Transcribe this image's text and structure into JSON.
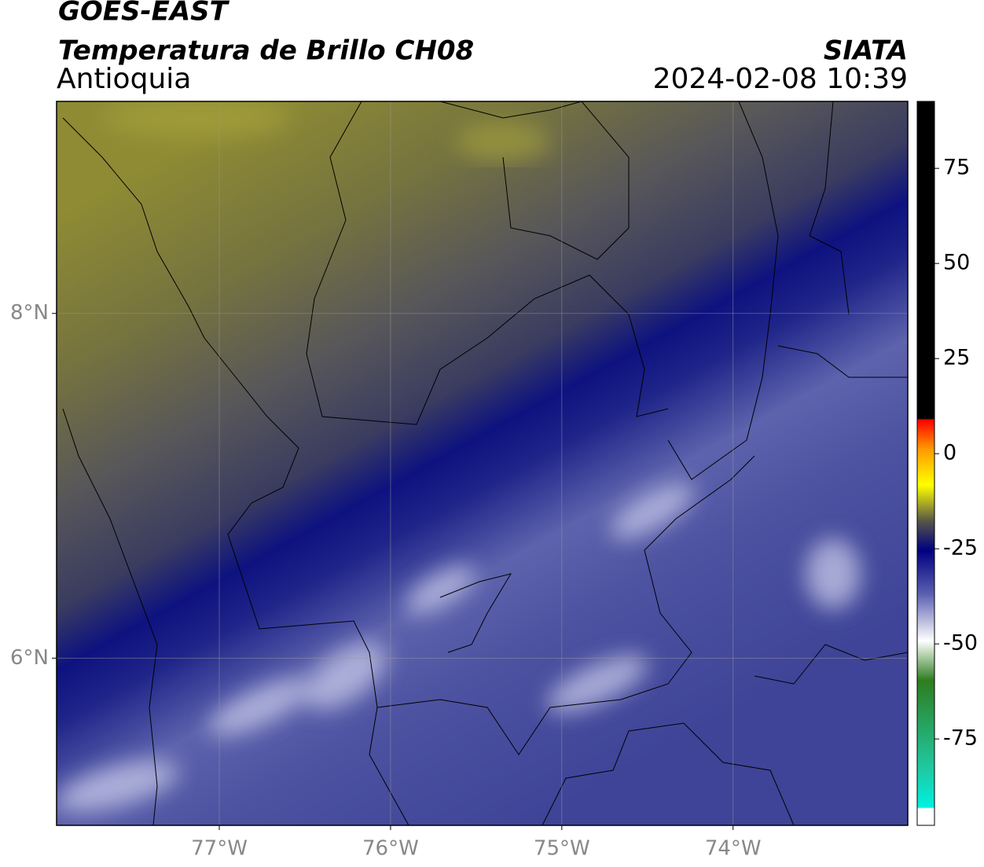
{
  "header": {
    "title": "GOES-EAST",
    "subtitle": "Temperatura de Brillo CH08",
    "region": "Antioquia",
    "source": "SIATA",
    "timestamp": "2024-02-08 10:39"
  },
  "map": {
    "xlim": [
      -77.95,
      -72.98
    ],
    "ylim": [
      5.03,
      9.23
    ],
    "xticks": [
      {
        "value": -77,
        "label": "77°W"
      },
      {
        "value": -76,
        "label": "76°W"
      },
      {
        "value": -75,
        "label": "75°W"
      },
      {
        "value": -74,
        "label": "74°W"
      }
    ],
    "yticks": [
      {
        "value": 8,
        "label": "8°N"
      },
      {
        "value": 6,
        "label": "6°N"
      }
    ],
    "grid": true
  },
  "colorbar": {
    "lim": [
      -97.7,
      92.6
    ],
    "ticks": [
      75,
      50,
      25,
      0,
      -25,
      -50,
      -75
    ]
  }
}
